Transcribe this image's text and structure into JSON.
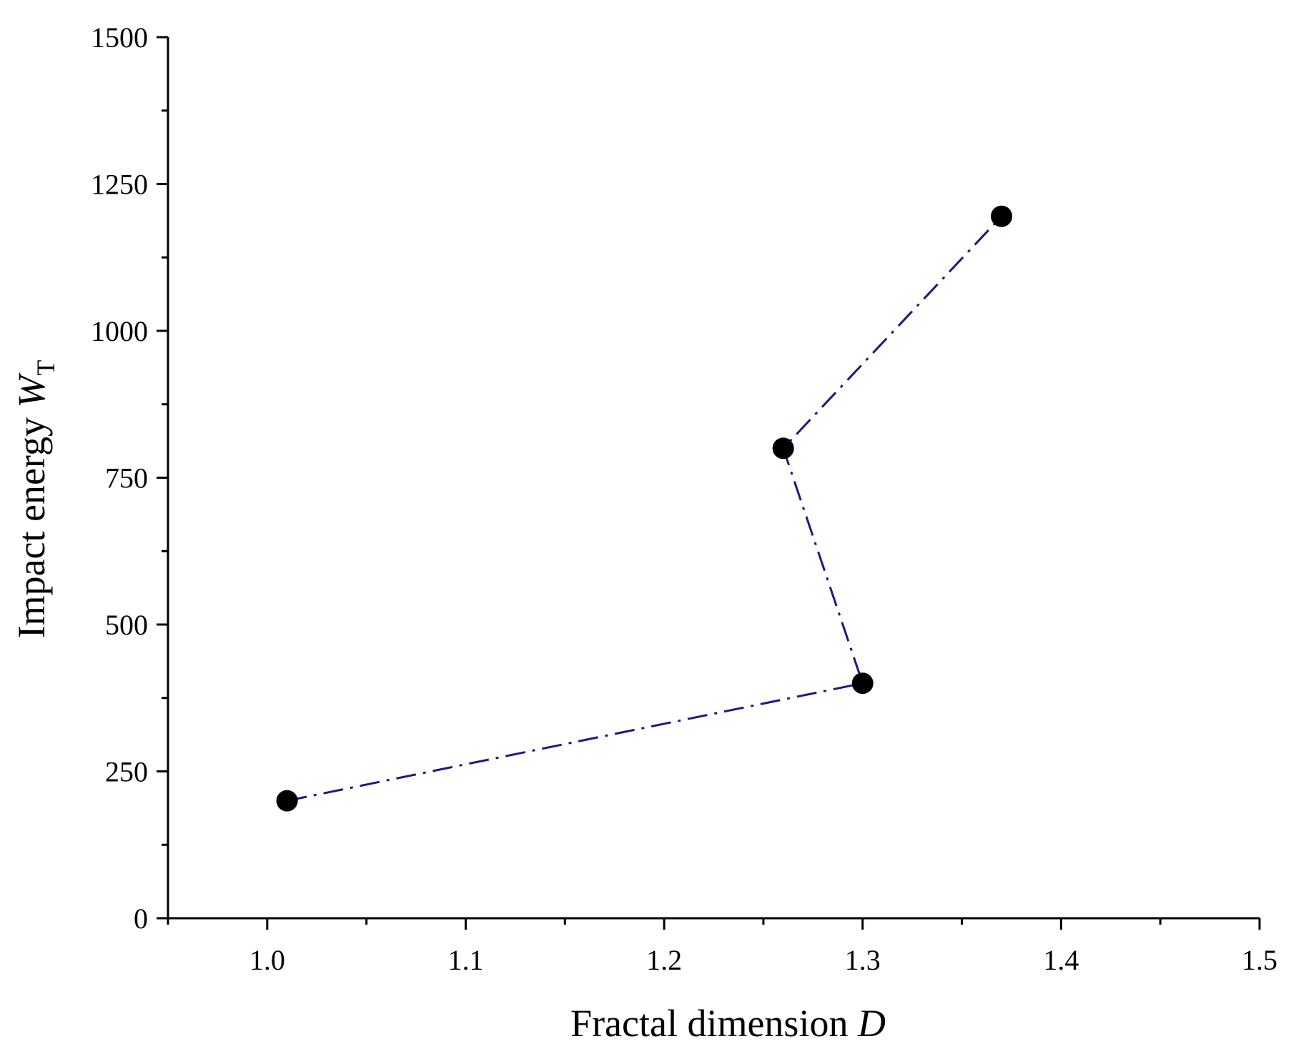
{
  "chart_data": {
    "type": "line",
    "x_axis": {
      "label_text": "Fractal dimension ",
      "label_var": "D",
      "range": [
        0.95,
        1.5
      ],
      "major_ticks": [
        1.0,
        1.1,
        1.2,
        1.3,
        1.4,
        1.5
      ],
      "minor_ticks": [
        0.95,
        1.05,
        1.15,
        1.25,
        1.35,
        1.45
      ],
      "tick_labels": [
        "1.0",
        "1.1",
        "1.2",
        "1.3",
        "1.4",
        "1.5"
      ]
    },
    "y_axis": {
      "label_text": "Impact energy ",
      "label_var": "W",
      "label_sub": "T",
      "range": [
        0,
        1500
      ],
      "major_ticks": [
        0,
        250,
        500,
        750,
        1000,
        1250,
        1500
      ],
      "minor_ticks": [
        125,
        375,
        625,
        875,
        1125,
        1375
      ],
      "tick_labels": [
        "0",
        "250",
        "500",
        "750",
        "1000",
        "1250",
        "1500"
      ]
    },
    "series": [
      {
        "color": "#1a1a80",
        "line_style": "dash-dot",
        "marker": "filled-circle",
        "x": [
          1.01,
          1.3,
          1.26,
          1.37
        ],
        "y": [
          200,
          400,
          800,
          1195
        ]
      }
    ],
    "grid": false,
    "legend": "none"
  }
}
